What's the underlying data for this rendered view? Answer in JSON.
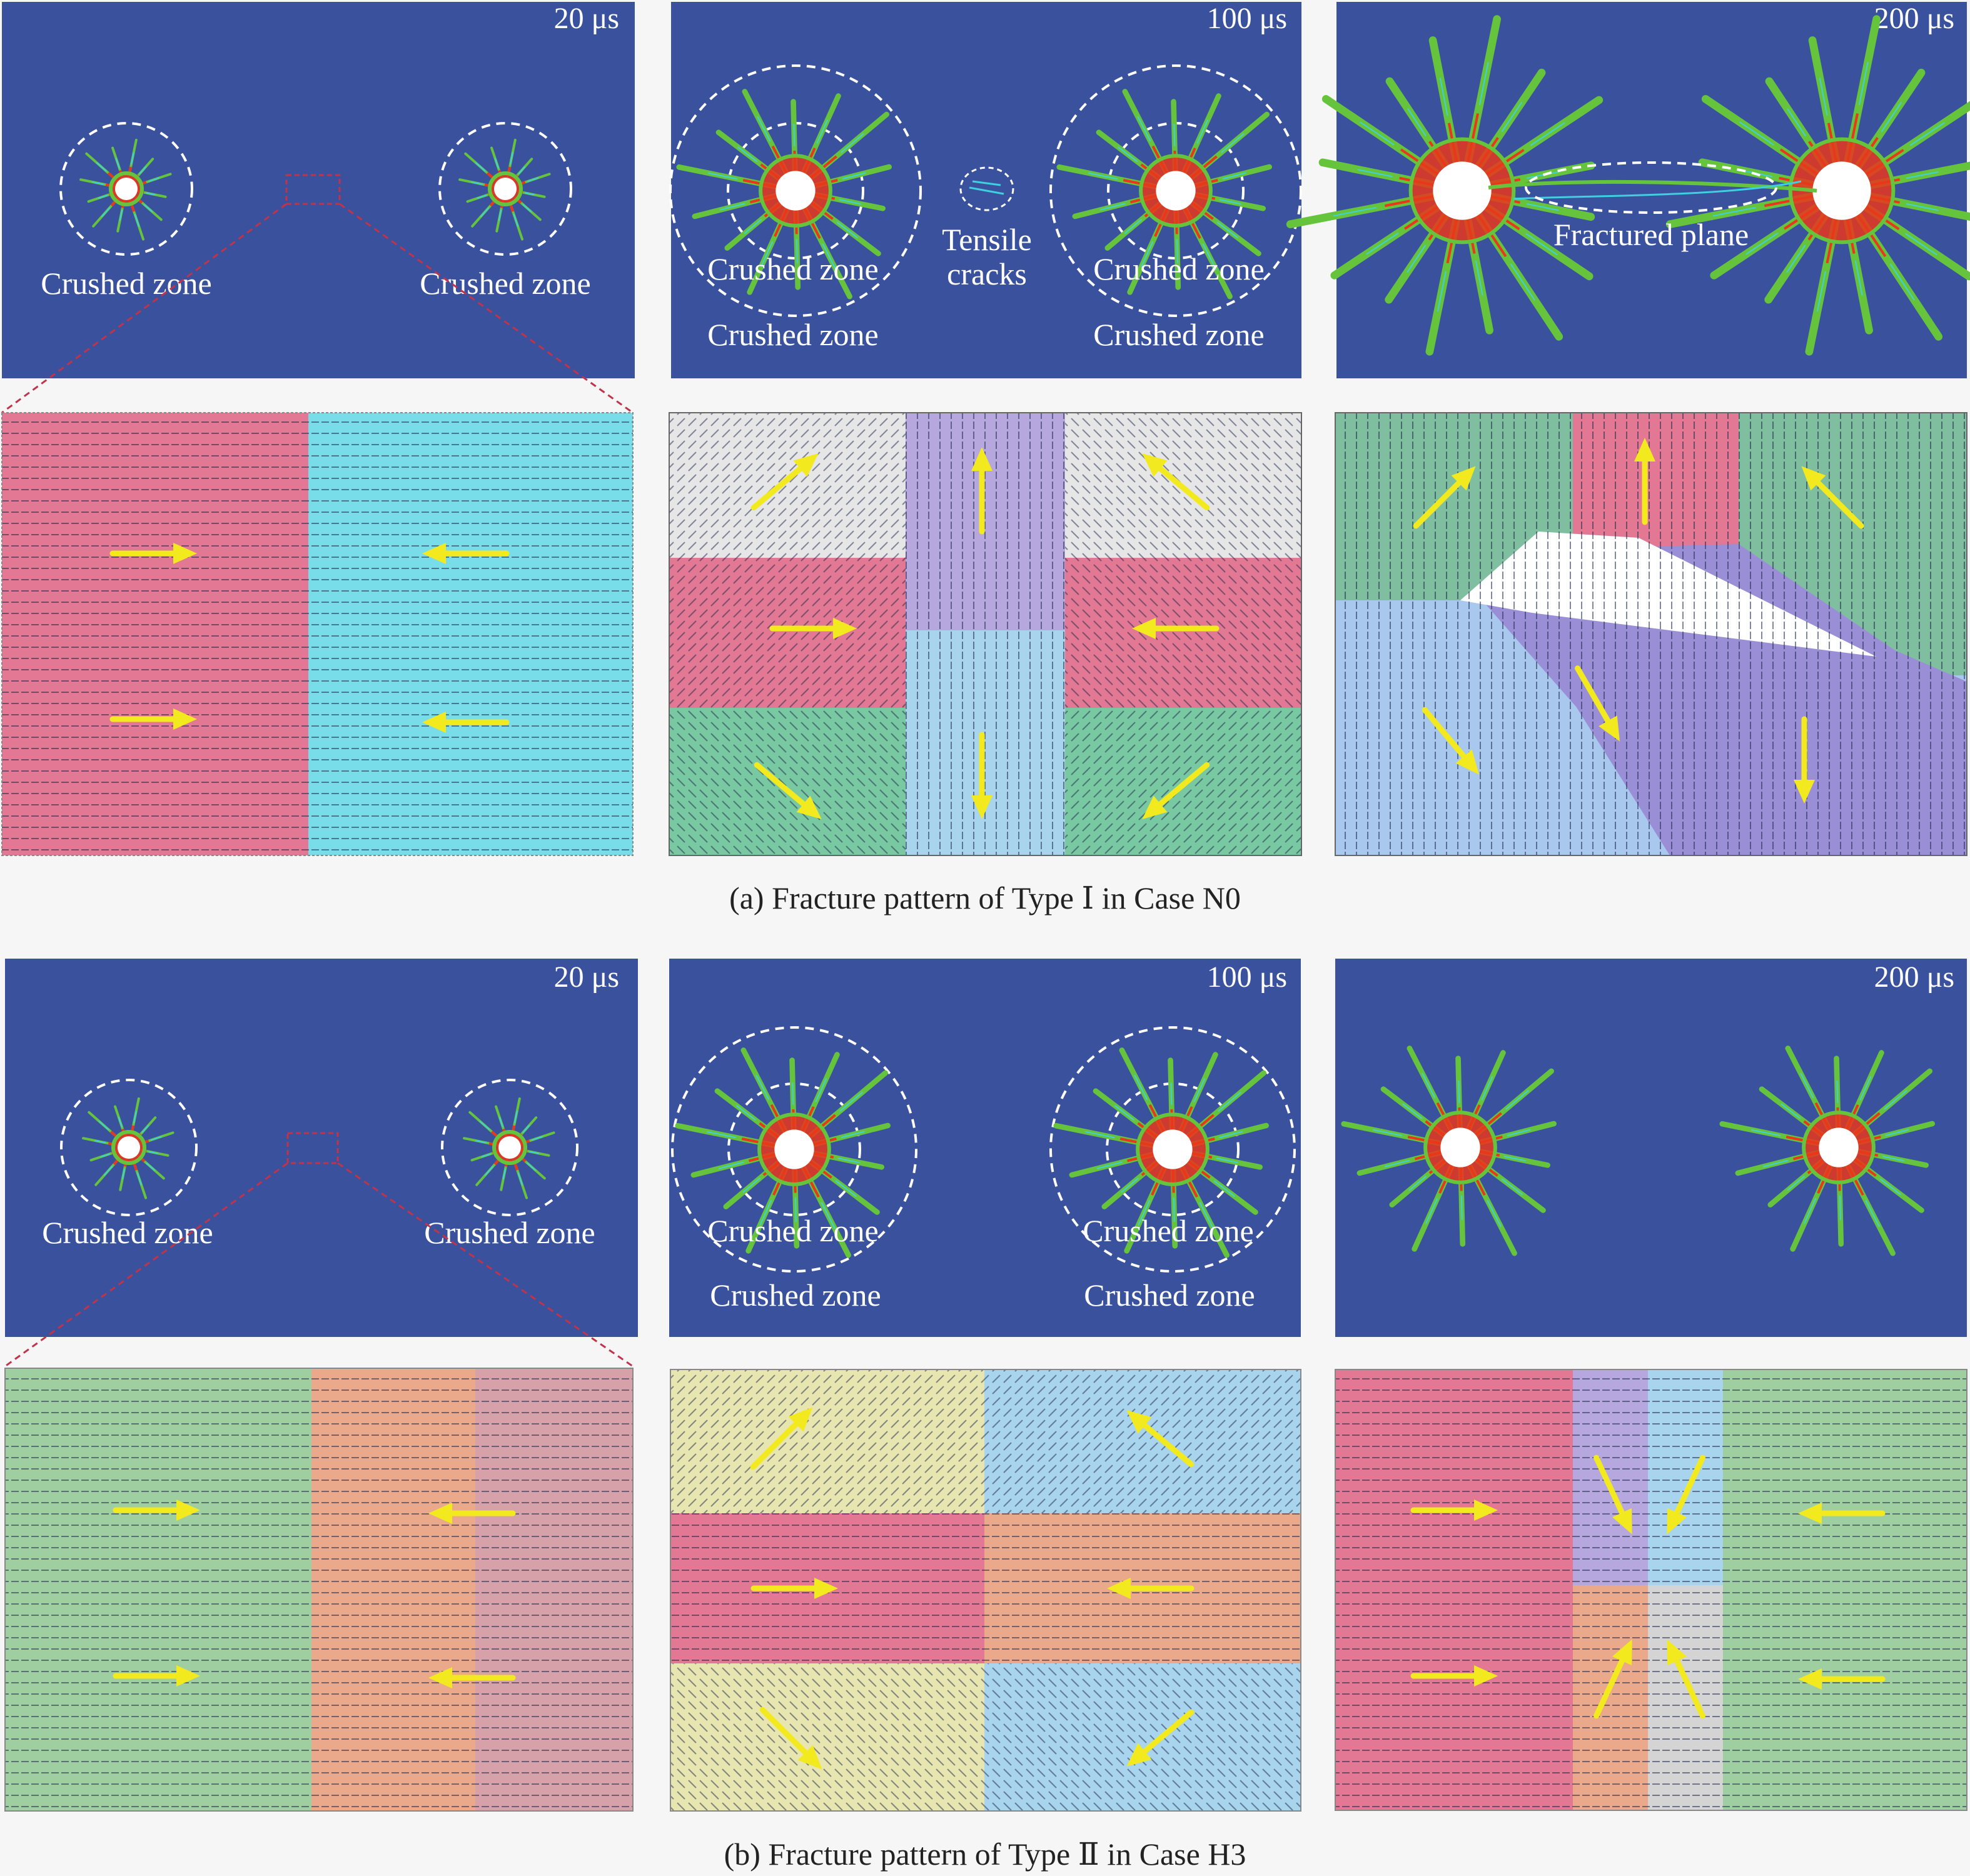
{
  "colors": {
    "blast_bg": "#3a529d",
    "arrow": "#f2ea1e",
    "dashed_circle": "#ffffff",
    "zoom_line": "#c0334a",
    "crack_green": "#66c43c",
    "crack_red": "#e9361c",
    "crack_cyan": "#3fd0e0",
    "borehole": "#ffffff"
  },
  "panel_a": {
    "caption": "(a) Fracture pattern of Type Ⅰ in Case N0",
    "times": [
      "20 μs",
      "100 μs",
      "200 μs"
    ],
    "crushed_zone": "Crushed zone",
    "tensile_cracks_line1": "Tensile",
    "tensile_cracks_line2": "cracks",
    "fractured_plane": "Fractured plane"
  },
  "panel_b": {
    "caption": "(b) Fracture pattern of Type Ⅱ in Case H3",
    "times": [
      "20 μs",
      "100 μs",
      "200 μs"
    ],
    "crushed_zone": "Crushed zone"
  }
}
